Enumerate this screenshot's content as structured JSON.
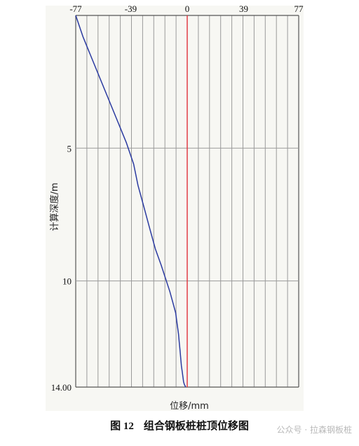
{
  "chart_data": {
    "type": "line",
    "title": "",
    "xlabel": "位移/mm",
    "ylabel": "计算深度/m",
    "x_ticks": [
      -77,
      -39,
      0,
      39,
      77
    ],
    "y_ticks": [
      0,
      5,
      10,
      14.0
    ],
    "y_tick_labels": [
      "",
      "5",
      "10",
      "14.00"
    ],
    "xlim": [
      -77,
      77
    ],
    "ylim": [
      0,
      14.0
    ],
    "y_inverted": true,
    "grid": true,
    "grid_x_count": 20,
    "zero_line_color": "#e0303a",
    "series": [
      {
        "color": "#2a3aa0",
        "x": [
          -77,
          -72,
          -66,
          -60,
          -54,
          -48,
          -42,
          -37,
          -34,
          -30,
          -26,
          -22,
          -18,
          -15,
          -12,
          -10,
          -8,
          -7,
          -6,
          -5.5,
          -5,
          -4.5,
          -4,
          -3.5,
          -3,
          -2.5,
          -2,
          -1.5,
          -1
        ],
        "y": [
          0,
          0.8,
          1.6,
          2.4,
          3.2,
          4.0,
          4.8,
          5.6,
          6.4,
          7.2,
          8.0,
          8.8,
          9.4,
          9.9,
          10.4,
          10.8,
          11.2,
          11.6,
          12.0,
          12.3,
          12.6,
          12.9,
          13.2,
          13.4,
          13.6,
          13.8,
          13.9,
          13.95,
          14.0
        ]
      }
    ]
  },
  "caption": {
    "figure_number": "图 12",
    "text": "组合钢板桩桩顶位移图"
  },
  "watermark": "公众号 · 拉森钢板桩"
}
